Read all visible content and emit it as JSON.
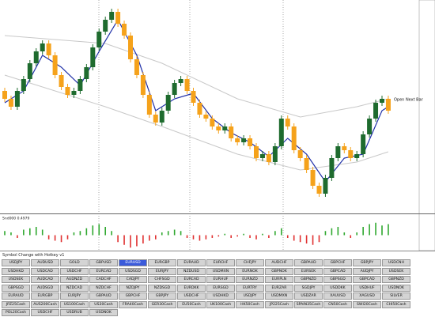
{
  "chart_data": [
    {
      "type": "candlestick",
      "ylim": [
        1.083,
        1.11
      ],
      "up_color": "#1e6b2e",
      "down_color": "#f5a21b",
      "annotation": "Open Next Bar",
      "open": [
        1.0985,
        1.0975,
        1.0965,
        1.0985,
        1.1,
        1.102,
        1.1035,
        1.1045,
        1.103,
        1.1005,
        1.099,
        1.098,
        1.0985,
        1.1,
        1.1015,
        1.104,
        1.106,
        1.1075,
        1.1085,
        1.107,
        1.1055,
        1.1025,
        1.1005,
        1.098,
        1.0955,
        1.0945,
        1.096,
        1.098,
        1.0995,
        1.1,
        1.0985,
        1.097,
        1.0955,
        1.095,
        1.094,
        1.0935,
        1.094,
        1.0925,
        1.092,
        1.0925,
        1.0915,
        1.09,
        1.0905,
        1.0895,
        1.0915,
        1.095,
        1.094,
        1.091,
        1.09,
        1.0885,
        1.0865,
        1.0855,
        1.0875,
        1.09,
        1.0915,
        1.091,
        1.09,
        1.0905,
        1.093,
        1.095,
        1.097,
        1.0975
      ],
      "high": [
        1.0989,
        1.0979,
        1.0989,
        1.1004,
        1.1024,
        1.1039,
        1.1049,
        1.1049,
        1.1034,
        1.1009,
        1.0994,
        1.0989,
        1.1004,
        1.1019,
        1.1044,
        1.1064,
        1.1079,
        1.1089,
        1.1089,
        1.1074,
        1.1059,
        1.1029,
        1.1009,
        1.0984,
        1.0959,
        1.0964,
        1.0984,
        1.0999,
        1.1004,
        1.1004,
        1.0989,
        1.0974,
        1.0959,
        1.0954,
        1.0944,
        1.0944,
        1.0944,
        1.0929,
        1.0929,
        1.0929,
        1.0919,
        1.0909,
        1.0909,
        1.0919,
        1.0954,
        1.0954,
        1.0944,
        1.0914,
        1.0904,
        1.0889,
        1.0869,
        1.0879,
        1.0904,
        1.0919,
        1.0919,
        1.0914,
        1.0909,
        1.0934,
        1.0954,
        1.0974,
        1.0979,
        1.0979
      ],
      "low": [
        1.0971,
        1.0961,
        1.0961,
        1.0981,
        1.0996,
        1.1016,
        1.1031,
        1.1026,
        1.1001,
        1.0986,
        1.0976,
        1.0976,
        1.0981,
        1.0996,
        1.1011,
        1.1036,
        1.1056,
        1.1071,
        1.1066,
        1.1051,
        1.1021,
        1.1001,
        1.0976,
        1.0951,
        1.0941,
        1.0941,
        1.0956,
        1.0976,
        1.0991,
        1.0981,
        1.0966,
        1.0951,
        1.0946,
        1.0936,
        1.0931,
        1.0931,
        1.0921,
        1.0916,
        1.0916,
        1.0911,
        1.0896,
        1.0896,
        1.0891,
        1.0891,
        1.0911,
        1.0936,
        1.0906,
        1.0896,
        1.0881,
        1.0861,
        1.0851,
        1.0851,
        1.0871,
        1.0896,
        1.0906,
        1.0896,
        1.0896,
        1.0901,
        1.0926,
        1.0946,
        1.0966,
        1.0956
      ],
      "close": [
        1.0975,
        1.0965,
        1.0985,
        1.1,
        1.102,
        1.1035,
        1.1045,
        1.103,
        1.1005,
        1.099,
        1.098,
        1.0985,
        1.1,
        1.1015,
        1.104,
        1.106,
        1.1075,
        1.1085,
        1.107,
        1.1055,
        1.1025,
        1.1005,
        1.098,
        1.0955,
        1.0945,
        1.096,
        1.098,
        1.0995,
        1.1,
        1.0985,
        1.097,
        1.0955,
        1.095,
        1.094,
        1.0935,
        1.094,
        1.0925,
        1.092,
        1.0925,
        1.0915,
        1.09,
        1.0905,
        1.0895,
        1.0915,
        1.095,
        1.094,
        1.091,
        1.09,
        1.0885,
        1.0865,
        1.0855,
        1.0875,
        1.09,
        1.0915,
        1.091,
        1.09,
        1.0905,
        1.093,
        1.095,
        1.097,
        1.0975,
        1.096
      ],
      "series": [
        {
          "color": "#c8c8c8",
          "x": [
            0,
            16,
            25,
            37,
            47,
            56,
            61
          ],
          "values": [
            1.1055,
            1.1045,
            1.102,
            1.0975,
            1.0952,
            1.0965,
            1.0975
          ]
        },
        {
          "color": "#c8c8c8",
          "x": [
            0,
            16,
            25,
            37,
            47,
            56,
            61
          ],
          "values": [
            1.1005,
            1.0965,
            1.094,
            1.0905,
            1.0885,
            1.0895,
            1.0908
          ]
        },
        {
          "color": "#1f2fa8",
          "x": [
            0,
            3,
            6,
            9,
            12,
            15,
            18,
            21,
            24,
            27,
            30,
            33,
            36,
            39,
            42,
            45,
            48,
            51,
            54,
            57,
            60,
            61
          ],
          "values": [
            1.097,
            1.0985,
            1.103,
            1.1015,
            1.0992,
            1.1035,
            1.1075,
            1.103,
            1.096,
            1.0975,
            1.0982,
            1.095,
            1.0932,
            1.092,
            1.0902,
            1.0925,
            1.0905,
            1.087,
            1.09,
            1.0905,
            1.096,
            1.0965
          ]
        }
      ]
    },
    {
      "type": "histogram",
      "label": "Snd000 0.4979",
      "ylim": [
        -1,
        1
      ],
      "up_color": "#2fa82f",
      "down_color": "#e03030",
      "values": [
        0.3,
        0.2,
        -0.2,
        0.4,
        0.5,
        0.6,
        0.4,
        -0.3,
        -0.4,
        -0.5,
        -0.3,
        0.2,
        0.3,
        0.5,
        0.7,
        0.8,
        0.6,
        0.3,
        -0.5,
        -0.7,
        -0.9,
        -0.8,
        -0.6,
        -0.4,
        -0.3,
        0.2,
        0.3,
        0.4,
        0.3,
        -0.2,
        -0.3,
        -0.4,
        -0.3,
        -0.2,
        -0.1,
        0.1,
        -0.2,
        -0.1,
        0.1,
        -0.2,
        -0.3,
        0.1,
        -0.2,
        0.3,
        0.5,
        -0.2,
        -0.4,
        -0.5,
        -0.6,
        -0.7,
        -0.5,
        0.3,
        0.5,
        0.6,
        0.2,
        -0.2,
        0.2,
        0.6,
        0.8,
        0.9,
        0.7,
        0.8
      ]
    }
  ],
  "panel": {
    "title": "Symbol Change with Hotkey v1",
    "selected": [
      0,
      4
    ],
    "rows": [
      [
        "USDJPY",
        "AUDUSD",
        "GOLD",
        "GBPUSD",
        "EURUSD",
        "EURGBP",
        "EURAUD",
        "EURCHF",
        "CHFJPY",
        "AUDCHF",
        "GBPAUD",
        "GBPCHF",
        "GBPJPY",
        "USDCNH"
      ],
      [
        "USDHKD",
        "USDCAD",
        "USDCHF",
        "EURCAD",
        "USDSGD",
        "EURJPY",
        "NZDUSD",
        "USDMXN",
        "EURNOK",
        "GBPNOK",
        "EURSEK",
        "GBPCAD",
        "AUDJPY",
        "USDSEK"
      ],
      [
        "USDSEK",
        "AUDCAD",
        "AUDNZD",
        "CADCHF",
        "CADJPY",
        "CHFSGD",
        "EURCAD",
        "EURHUF",
        "EURNZD",
        "EURPLN",
        "GBPNZD",
        "GBPSGD",
        "GBPCAD",
        "GBPNZD"
      ],
      [
        "GBPSGD",
        "AUDSGD",
        "NZDCAD",
        "NZDCHF",
        "NZDJPY",
        "NZDSGD",
        "EURDKK",
        "EURSGD",
        "EURTRY",
        "EURZAR",
        "SGDJPY",
        "USDDKK",
        "USDHUF",
        "USDNOK"
      ],
      [
        "EURAUD",
        "EURGBP",
        "EURJPY",
        "GBPAUD",
        "GBPCHF",
        "GBPJPY",
        "USDCHF",
        "USDHKD",
        "USDJPY",
        "USDMXN",
        "USDZAR",
        "XAUUSD",
        "XAGUSD",
        "SILVER"
      ],
      [
        "JPZ25Cash",
        "AUS200Cash",
        "US100Cash",
        "US30Cash",
        "FRA40Cash",
        "GER30Cash",
        "EU50Cash",
        "UK100Cash",
        "HK50Cash",
        "JP225Cash",
        "SPAIN35Cash",
        "CN50Cash",
        "SWI20Cash",
        "CHI50Cash"
      ],
      [
        "POL20Cash",
        "USDCHF",
        "USDRUB",
        "USDNOK"
      ]
    ]
  }
}
